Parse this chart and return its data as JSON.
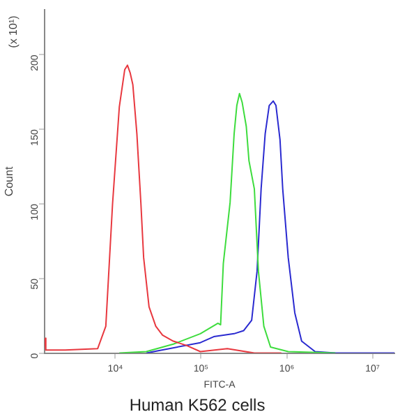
{
  "chart_data": {
    "type": "line",
    "title": "Human K562 cells",
    "xlabel": "FITC-A",
    "ylabel": "Count",
    "annotations": [
      "(x 10¹)"
    ],
    "log": "x",
    "xlim": [
      1500,
      18000000
    ],
    "xticks": [
      {
        "value": 10000,
        "label": "10⁴"
      },
      {
        "value": 100000,
        "label": "10⁵"
      },
      {
        "value": 1000000,
        "label": "10⁶"
      },
      {
        "value": 10000000,
        "label": "10⁷"
      }
    ],
    "ylim": [
      0,
      230
    ],
    "yticks": [
      0,
      50,
      100,
      150,
      200
    ],
    "grid": false,
    "legend": false,
    "marker": "none",
    "line_style": "solid",
    "series": [
      {
        "color": "#e8383f",
        "x": [
          1500,
          1550,
          2610,
          6240,
          7760,
          9300,
          11150,
          12890,
          13870,
          14900,
          16030,
          17870,
          19920,
          21430,
          24770,
          29680,
          35560,
          47530,
          68350,
          98200,
          202800,
          418800,
          865000
        ],
        "values": [
          10,
          2,
          2,
          3,
          18,
          100,
          165,
          190,
          193,
          188,
          180,
          147,
          100,
          64,
          31,
          18,
          12,
          8,
          5,
          1,
          3,
          0,
          0
        ]
      },
      {
        "color": "#3ddc3d",
        "x": [
          11150,
          23000,
          47530,
          98200,
          157500,
          169200,
          182000,
          218300,
          243300,
          261500,
          281000,
          302200,
          337000,
          362400,
          418800,
          467000,
          540000,
          647000,
          1040000,
          3690000
        ],
        "values": [
          0,
          1,
          6,
          13,
          20,
          19,
          60,
          101,
          147,
          166,
          174,
          168,
          152,
          129,
          110,
          55,
          18,
          4,
          1,
          0
        ]
      },
      {
        "color": "#2a2ad0",
        "x": [
          23000,
          98200,
          141000,
          243300,
          313500,
          389600,
          450500,
          502000,
          560000,
          624000,
          696000,
          748000,
          834000,
          897000,
          1040000,
          1240000,
          1490000,
          2140000,
          3690000,
          18000000
        ],
        "values": [
          0,
          7,
          11,
          13,
          15,
          22,
          55,
          110,
          147,
          166,
          169,
          166,
          143,
          110,
          64,
          27,
          8,
          1,
          0,
          0
        ]
      }
    ]
  }
}
